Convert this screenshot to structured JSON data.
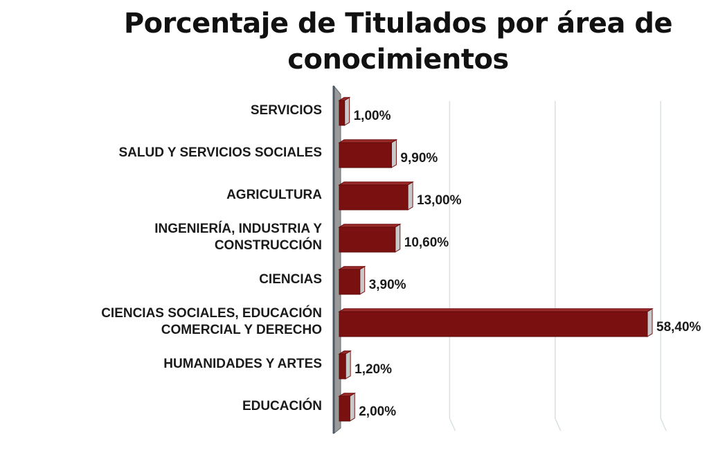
{
  "chart_data": {
    "type": "bar",
    "orientation": "horizontal",
    "title": "Porcentaje de Titulados por área de conocimientos",
    "categories": [
      "SERVICIOS",
      "SALUD Y SERVICIOS SOCIALES",
      "AGRICULTURA",
      "INGENIERÍA, INDUSTRIA Y CONSTRUCCIÓN",
      "CIENCIAS",
      "CIENCIAS SOCIALES, EDUCACIÓN COMERCIAL Y DERECHO",
      "HUMANIDADES Y ARTES",
      "EDUCACIÓN"
    ],
    "category_lines": [
      [
        "SERVICIOS"
      ],
      [
        "SALUD Y SERVICIOS SOCIALES"
      ],
      [
        "AGRICULTURA"
      ],
      [
        "INGENIERÍA, INDUSTRIA Y",
        "CONSTRUCCIÓN"
      ],
      [
        "CIENCIAS"
      ],
      [
        "CIENCIAS SOCIALES, EDUCACIÓN",
        "COMERCIAL Y DERECHO"
      ],
      [
        "HUMANIDADES Y ARTES"
      ],
      [
        "EDUCACIÓN"
      ]
    ],
    "values": [
      1.0,
      9.9,
      13.0,
      10.6,
      3.9,
      58.4,
      1.2,
      2.0
    ],
    "data_labels": [
      "1,00%",
      "9,90%",
      "13,00%",
      "10,60%",
      "3,90%",
      "58,40%",
      "1,20%",
      "2,00%"
    ],
    "xlim": [
      0,
      60
    ],
    "grid": true,
    "legend": "none",
    "colors": {
      "bar_front": "#7a1010",
      "bar_side": "#c9c9c9",
      "bar_top": "#9a2a2a",
      "axis_wall": "#9a9a9a",
      "grid": "#d8e0e0"
    }
  }
}
